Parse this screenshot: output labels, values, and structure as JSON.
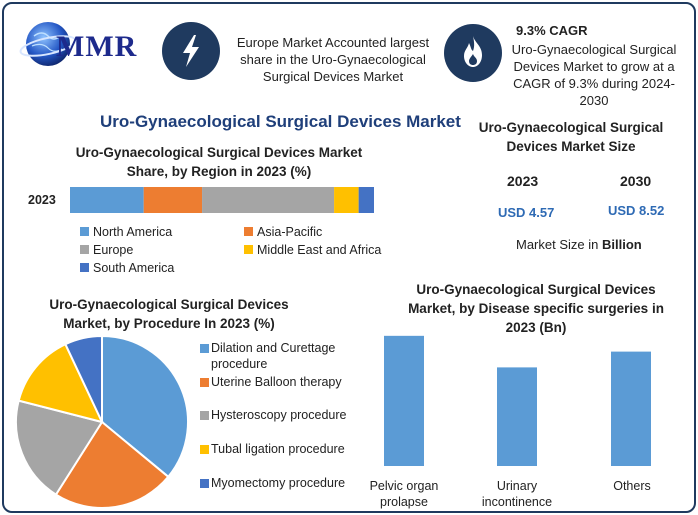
{
  "logo": {
    "text": "MMR"
  },
  "header": {
    "europe_text": "Europe Market Accounted largest share in the Uro-Gynaecological Surgical Devices Market",
    "cagr_title": "9.3% CAGR",
    "cagr_text": "Uro-Gynaecological Surgical Devices Market to grow at a CAGR of 9.3% during 2024-2030",
    "bolt_icon": "lightning-bolt-icon",
    "flame_icon": "flame-icon"
  },
  "main_title": "Uro-Gynaecological Surgical Devices Market",
  "market_size": {
    "title": "Uro-Gynaecological Surgical Devices Market Size",
    "year1": "2023",
    "year2": "2030",
    "value1": "USD 4.57",
    "value2": "USD 8.52",
    "note_prefix": "Market Size in",
    "note_unit": "Billion"
  },
  "colors": {
    "blue": "#5b9bd5",
    "orange": "#ed7d31",
    "gray": "#a5a5a5",
    "yellow": "#ffc000",
    "dark_blue": "#4472c4",
    "navy": "#1f3a5f",
    "title_blue": "#1f3f7a"
  },
  "chart_data": [
    {
      "type": "bar",
      "orientation": "horizontal-stacked",
      "title": "Uro-Gynaecological Surgical Devices Market Share, by Region in 2023 (%)",
      "categories": [
        "2023"
      ],
      "series": [
        {
          "name": "North America",
          "values": [
            24
          ],
          "color": "#5b9bd5"
        },
        {
          "name": "Asia-Pacific",
          "values": [
            19
          ],
          "color": "#ed7d31"
        },
        {
          "name": "Europe",
          "values": [
            43
          ],
          "color": "#a5a5a5"
        },
        {
          "name": "Middle East and Africa",
          "values": [
            8
          ],
          "color": "#ffc000"
        },
        {
          "name": "South America",
          "values": [
            5
          ],
          "color": "#4472c4"
        }
      ],
      "legend_position": "bottom"
    },
    {
      "type": "pie",
      "title": "Uro-Gynaecological Surgical Devices Market, by Procedure In 2023 (%)",
      "slices": [
        {
          "label": "Dilation and Curettage procedure",
          "value": 36,
          "color": "#5b9bd5"
        },
        {
          "label": "Uterine Balloon therapy",
          "value": 23,
          "color": "#ed7d31"
        },
        {
          "label": "Hysteroscopy procedure",
          "value": 20,
          "color": "#a5a5a5"
        },
        {
          "label": "Tubal ligation procedure",
          "value": 14,
          "color": "#ffc000"
        },
        {
          "label": "Myomectomy procedure",
          "value": 7,
          "color": "#4472c4"
        }
      ],
      "legend_position": "right"
    },
    {
      "type": "bar",
      "title": "Uro-Gynaecological Surgical Devices Market, by Disease specific surgeries in 2023 (Bn)",
      "categories": [
        "Pelvic organ prolapse",
        "Urinary incontinence",
        "Others"
      ],
      "values": [
        1.65,
        1.25,
        1.45
      ],
      "ylim": [
        0,
        1.8
      ],
      "color": "#5b9bd5"
    }
  ]
}
